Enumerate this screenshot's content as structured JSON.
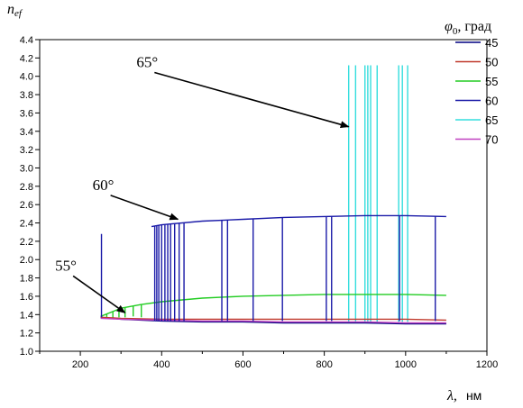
{
  "chart_data": {
    "type": "line",
    "ylabel_main": "n",
    "ylabel_sub": "ef",
    "xlabel_main": "λ,",
    "xlabel_unit": "нм",
    "xlim": [
      100,
      1200
    ],
    "ylim": [
      1.0,
      4.4
    ],
    "xticks": [
      200,
      400,
      600,
      800,
      1000,
      1200
    ],
    "xticks_minor": [
      100,
      300,
      500,
      700,
      900,
      1100
    ],
    "yticks": [
      1.0,
      1.2,
      1.4,
      1.6,
      1.8,
      2.0,
      2.2,
      2.4,
      2.6,
      2.8,
      3.0,
      3.2,
      3.4,
      3.6,
      3.8,
      4.0,
      4.2,
      4.4
    ],
    "legend": {
      "title_symbol": "φ",
      "title_sub": "0",
      "title_unit": ",   град",
      "placement": "top-right"
    },
    "series": [
      {
        "name": "45",
        "color": "#000080",
        "x": [
          250,
          300,
          400,
          500,
          600,
          700,
          800,
          900,
          1000,
          1100
        ],
        "y": [
          1.37,
          1.35,
          1.33,
          1.32,
          1.32,
          1.31,
          1.31,
          1.31,
          1.3,
          1.3
        ]
      },
      {
        "name": "50",
        "color": "#c0392b",
        "x": [
          250,
          300,
          400,
          500,
          600,
          700,
          800,
          900,
          1000,
          1100
        ],
        "y": [
          1.37,
          1.36,
          1.35,
          1.35,
          1.35,
          1.35,
          1.35,
          1.35,
          1.35,
          1.34
        ]
      },
      {
        "name": "55",
        "color": "#22cc22",
        "x": [
          250,
          300,
          350,
          400,
          450,
          500,
          600,
          700,
          800,
          900,
          1000,
          1100
        ],
        "y": [
          1.38,
          1.47,
          1.51,
          1.54,
          1.56,
          1.58,
          1.6,
          1.61,
          1.62,
          1.62,
          1.62,
          1.61
        ],
        "spikes": [
          {
            "x": 265,
            "y": 1.37
          },
          {
            "x": 280,
            "y": 1.36
          },
          {
            "x": 295,
            "y": 1.37
          },
          {
            "x": 310,
            "y": 1.37
          },
          {
            "x": 330,
            "y": 1.38
          },
          {
            "x": 350,
            "y": 1.37
          }
        ]
      },
      {
        "name": "60",
        "color": "#1a1aa8",
        "x": [
          375,
          400,
          500,
          600,
          700,
          800,
          900,
          1000,
          1100
        ],
        "y": [
          2.36,
          2.38,
          2.42,
          2.44,
          2.46,
          2.47,
          2.48,
          2.48,
          2.47
        ],
        "spikes": [
          {
            "x": 252,
            "y": 2.28
          },
          {
            "x": 383,
            "y": 1.33
          },
          {
            "x": 388,
            "y": 1.33
          },
          {
            "x": 393,
            "y": 1.33
          },
          {
            "x": 400,
            "y": 1.33
          },
          {
            "x": 408,
            "y": 1.33
          },
          {
            "x": 415,
            "y": 1.33
          },
          {
            "x": 422,
            "y": 1.33
          },
          {
            "x": 432,
            "y": 1.33
          },
          {
            "x": 443,
            "y": 1.33
          },
          {
            "x": 455,
            "y": 1.33
          },
          {
            "x": 548,
            "y": 1.33
          },
          {
            "x": 562,
            "y": 1.33
          },
          {
            "x": 625,
            "y": 1.33
          },
          {
            "x": 697,
            "y": 1.33
          },
          {
            "x": 805,
            "y": 1.33
          },
          {
            "x": 818,
            "y": 1.33
          },
          {
            "x": 985,
            "y": 1.33
          },
          {
            "x": 1073,
            "y": 1.33
          }
        ]
      },
      {
        "name": "65",
        "color": "#33dddd",
        "x": [
          100,
          1100
        ],
        "y": [
          null,
          null
        ],
        "spikes": [
          {
            "x": 860,
            "y": 4.12
          },
          {
            "x": 877,
            "y": 4.12
          },
          {
            "x": 900,
            "y": 4.12
          },
          {
            "x": 907,
            "y": 4.12
          },
          {
            "x": 914,
            "y": 4.12
          },
          {
            "x": 930,
            "y": 4.12
          },
          {
            "x": 983,
            "y": 4.12
          },
          {
            "x": 992,
            "y": 4.12
          },
          {
            "x": 1005,
            "y": 4.12
          }
        ]
      },
      {
        "name": "70",
        "color": "#c040c0",
        "x": [
          250,
          300,
          400,
          500,
          600,
          700,
          800,
          900,
          1000,
          1100
        ],
        "y": [
          1.36,
          1.35,
          1.34,
          1.33,
          1.33,
          1.32,
          1.32,
          1.32,
          1.31,
          1.31
        ]
      }
    ],
    "annotations": [
      {
        "text": "55°",
        "tx": 138,
        "ty": 1.88,
        "ax": 310,
        "ay": 1.42
      },
      {
        "text": "60°",
        "tx": 230,
        "ty": 2.76,
        "ax": 440,
        "ay": 2.44
      },
      {
        "text": "65°",
        "tx": 338,
        "ty": 4.1,
        "ax": 860,
        "ay": 3.45
      }
    ]
  }
}
